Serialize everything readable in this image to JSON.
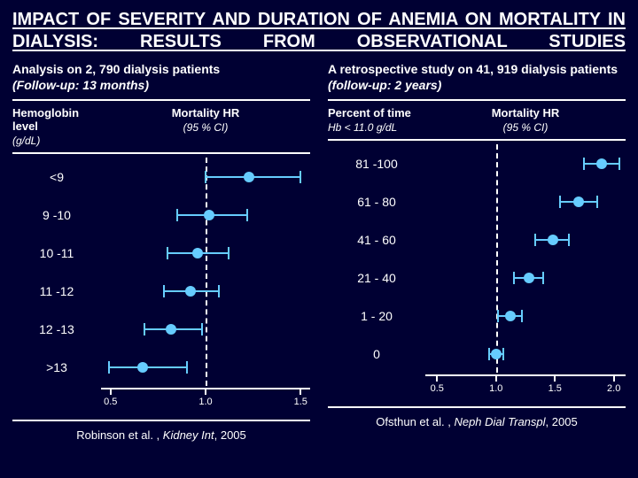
{
  "title": "IMPACT OF SEVERITY AND DURATION OF ANEMIA ON MORTALITY IN DIALYSIS: RESULTS FROM OBSERVATIONAL STUDIES",
  "colors": {
    "background": "#000033",
    "text": "#ffffff",
    "rule": "#ffffff",
    "series": "#66ccff"
  },
  "fonts": {
    "title_pt": 20,
    "subtitle_pt": 14,
    "body_pt": 13,
    "tick_pt": 11
  },
  "left": {
    "subtitle_line1": "Analysis on 2, 790 dialysis patients",
    "subtitle_line2": "(Follow-up: 13 months)",
    "col1_header": "Hemoglobin level",
    "col1_subheader": "(g/dL)",
    "col2_header": "Mortality HR",
    "col2_subheader": "(95 % CI)",
    "citation_author": "Robinson et al. , ",
    "citation_journal": "Kidney Int",
    "citation_year": ", 2005",
    "forest": {
      "type": "forest",
      "xmin": 0.45,
      "xmax": 1.55,
      "ticks": [
        0.5,
        1.0,
        1.5
      ],
      "tick_labels": [
        "0.5",
        "1.0",
        "1.5"
      ],
      "refline": 1.0,
      "dot_size": 12,
      "line_color": "#66ccff",
      "categories": [
        "<9",
        "9 -10",
        "10 -11",
        "11 -12",
        "12 -13",
        ">13"
      ],
      "rows": [
        {
          "lo": 1.0,
          "pt": 1.23,
          "hi": 1.5
        },
        {
          "lo": 0.85,
          "pt": 1.02,
          "hi": 1.22
        },
        {
          "lo": 0.8,
          "pt": 0.96,
          "hi": 1.12
        },
        {
          "lo": 0.78,
          "pt": 0.92,
          "hi": 1.07
        },
        {
          "lo": 0.68,
          "pt": 0.82,
          "hi": 0.98
        },
        {
          "lo": 0.49,
          "pt": 0.67,
          "hi": 0.9
        }
      ]
    }
  },
  "right": {
    "subtitle_line1": "A retrospective study on 41, 919 dialysis patients ",
    "subtitle_line2": "(follow-up: 2 years)",
    "col1_header": "Percent of time",
    "col1_subheader": "Hb < 11.0 g/dL",
    "col2_header": "Mortality HR",
    "col2_subheader": "(95 % CI)",
    "citation_author": "Ofsthun et al. , ",
    "citation_journal": "Neph Dial Transpl",
    "citation_year": ", 2005",
    "forest": {
      "type": "forest",
      "xmin": 0.4,
      "xmax": 2.1,
      "ticks": [
        0.5,
        1.0,
        1.5,
        2.0
      ],
      "tick_labels": [
        "0.5",
        "1.0",
        "1.5",
        "2.0"
      ],
      "refline": 1.0,
      "dot_size": 12,
      "line_color": "#66ccff",
      "categories": [
        "81 -100",
        "61 - 80",
        "41 - 60",
        "21 - 40",
        "1 - 20",
        "0"
      ],
      "rows": [
        {
          "lo": 1.75,
          "pt": 1.9,
          "hi": 2.05
        },
        {
          "lo": 1.54,
          "pt": 1.7,
          "hi": 1.86
        },
        {
          "lo": 1.33,
          "pt": 1.48,
          "hi": 1.62
        },
        {
          "lo": 1.15,
          "pt": 1.28,
          "hi": 1.4
        },
        {
          "lo": 1.02,
          "pt": 1.12,
          "hi": 1.22
        },
        {
          "lo": 0.94,
          "pt": 1.0,
          "hi": 1.06
        }
      ]
    }
  }
}
